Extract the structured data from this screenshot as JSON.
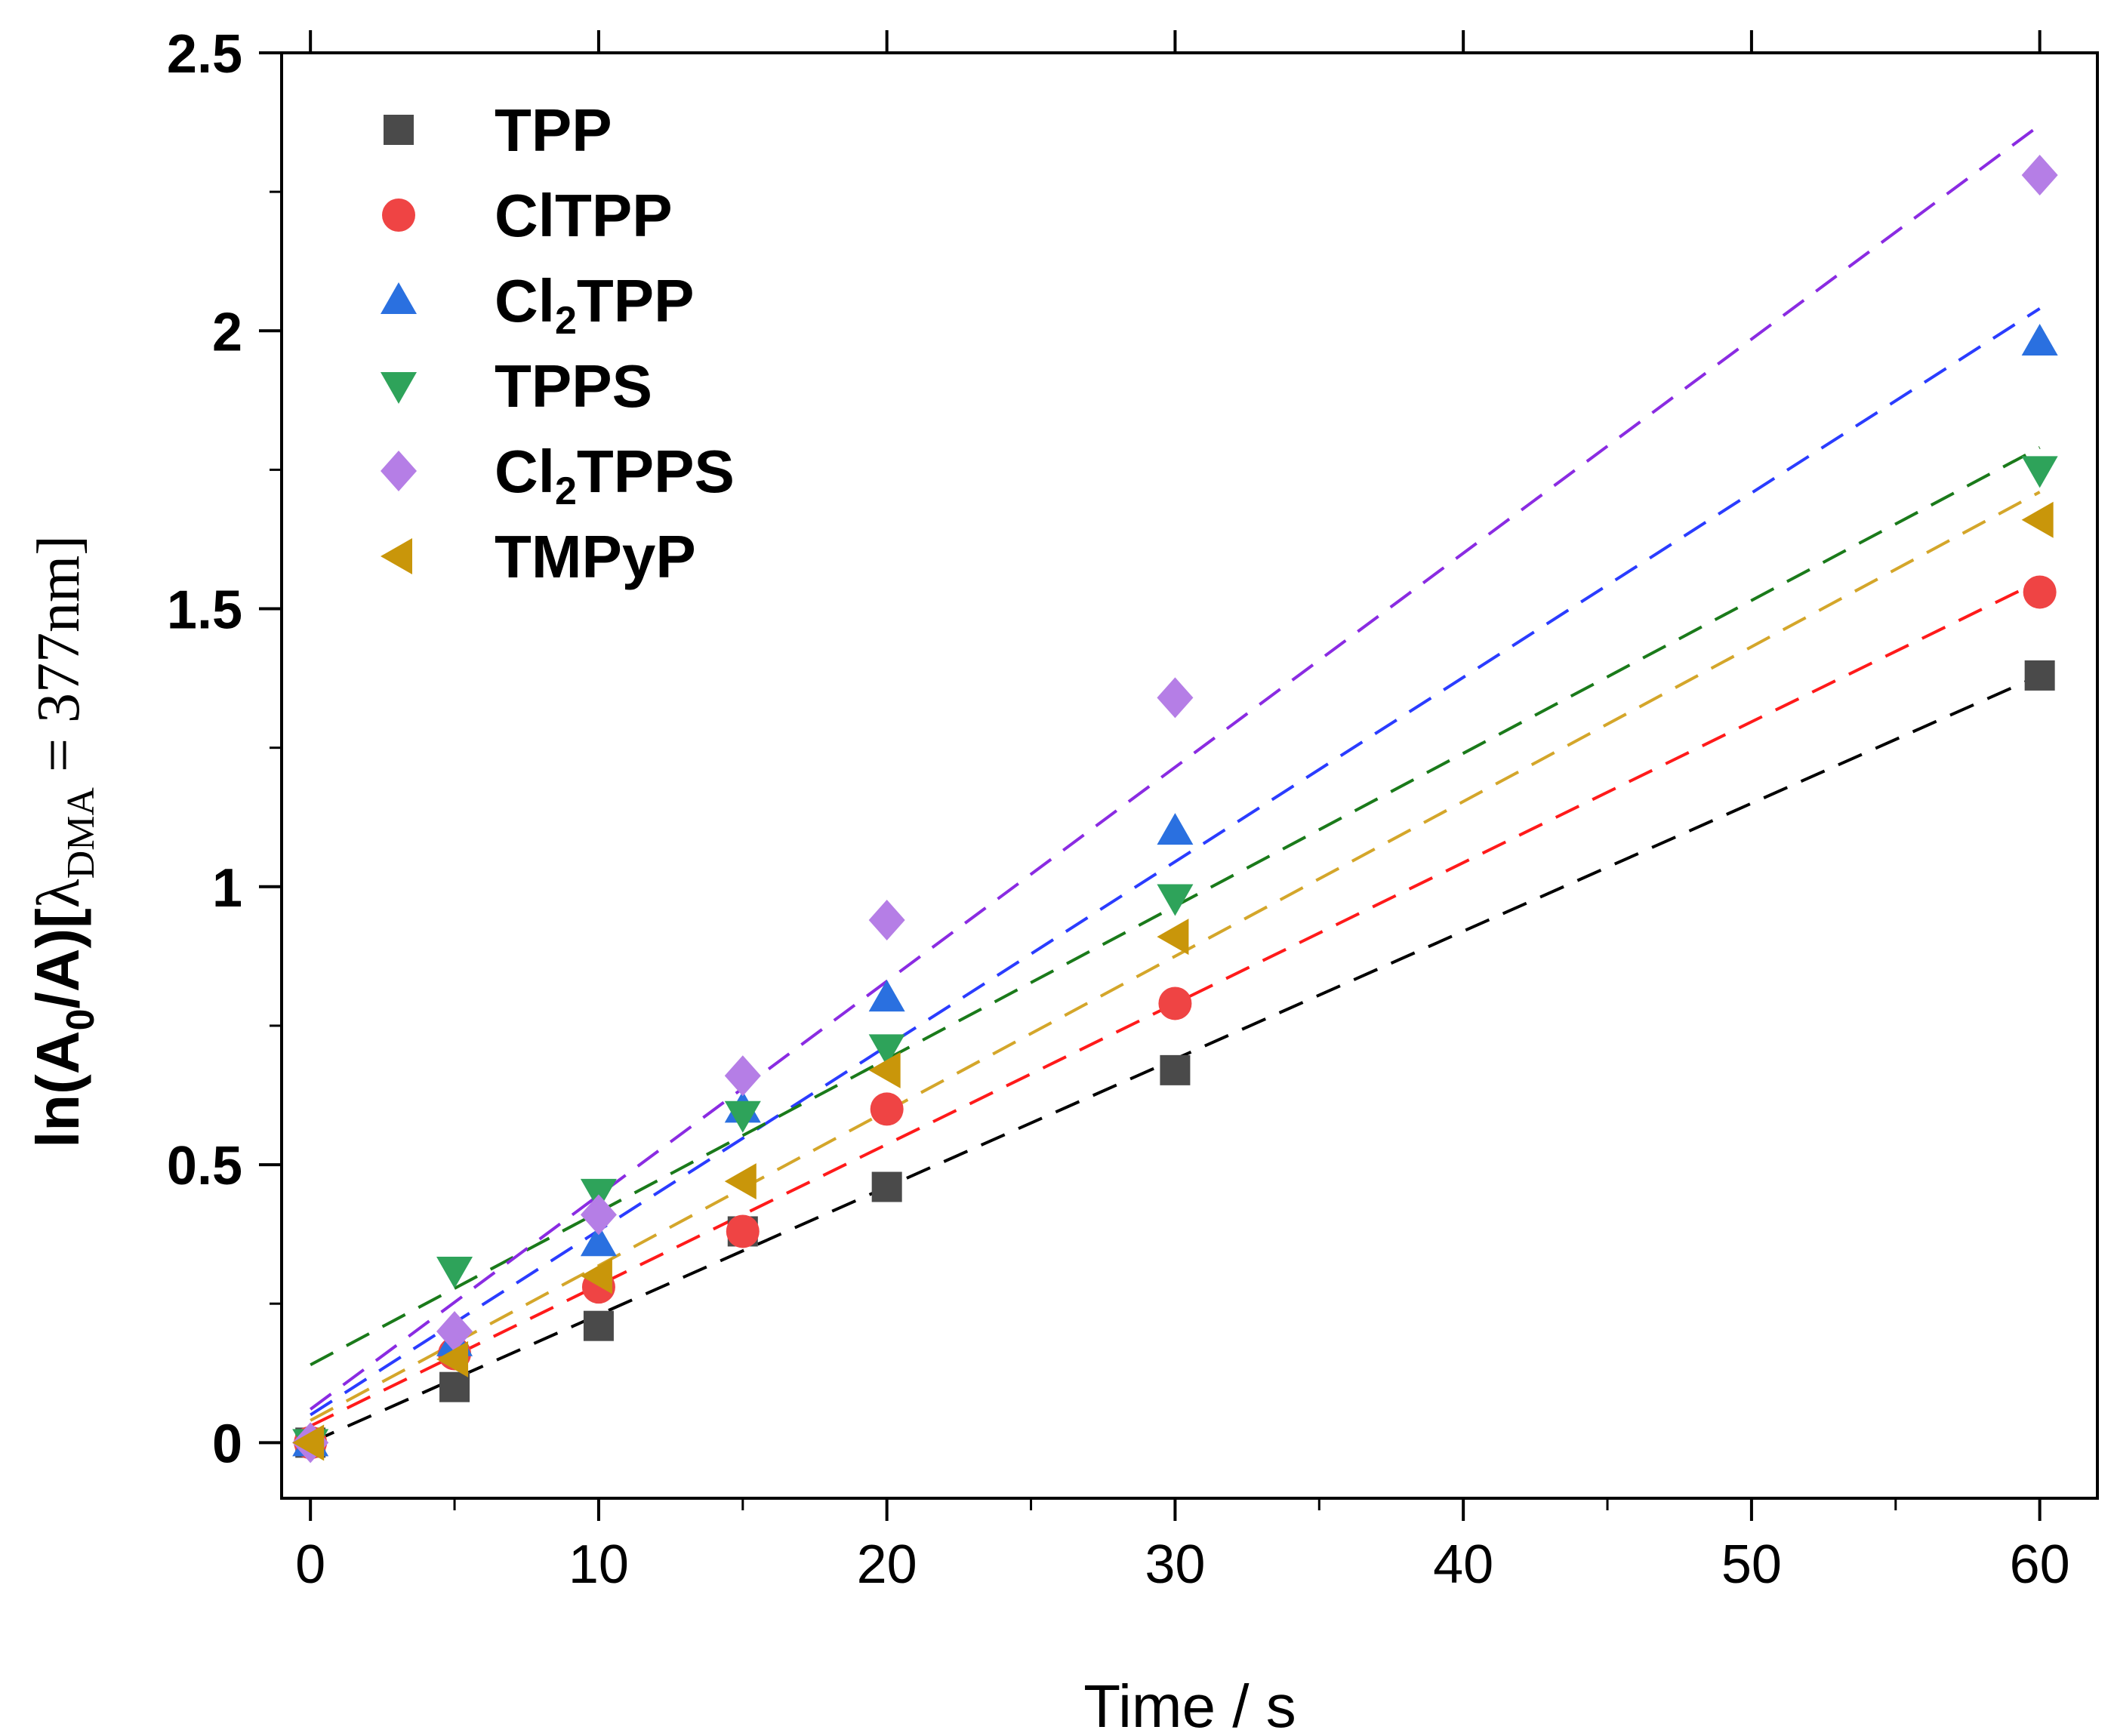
{
  "chart_data": {
    "type": "scatter",
    "xlabel": "Time / s",
    "ylabel": {
      "main": "ln(A",
      "sub0": "0",
      "mid": "/A)[",
      "lambda": "λ",
      "lambda_sub": "DMA",
      "rest": " = 377nm]"
    },
    "xlim": [
      -1,
      62
    ],
    "ylim": [
      -0.1,
      2.5
    ],
    "xticks": [
      0,
      10,
      20,
      30,
      40,
      50,
      60
    ],
    "xtick_labels": [
      "0",
      "10",
      "20",
      "30",
      "40",
      "50",
      "60"
    ],
    "yticks": [
      0,
      0.5,
      1,
      1.5,
      2,
      2.5
    ],
    "ytick_labels": [
      "0",
      "0.5",
      "1",
      "1.5",
      "2",
      "2.5"
    ],
    "x": [
      0,
      5,
      10,
      15,
      20,
      30,
      60
    ],
    "legend_position": "top-left",
    "series": [
      {
        "name": "TPP",
        "name_base": "TPP",
        "name_sub": "",
        "name_tail": "",
        "marker": "square",
        "color": "#4a4a4a",
        "fit_color": "#000000",
        "values": [
          0.0,
          0.1,
          0.21,
          0.38,
          0.46,
          0.67,
          1.38
        ],
        "fit": [
          0.0,
          1.38
        ]
      },
      {
        "name": "ClTPP",
        "name_base": "ClTPP",
        "name_sub": "",
        "name_tail": "",
        "marker": "circle",
        "color": "#ef4444",
        "fit_color": "#ff1a1a",
        "values": [
          0.0,
          0.16,
          0.28,
          0.38,
          0.6,
          0.79,
          1.53
        ],
        "fit": [
          0.03,
          1.55
        ]
      },
      {
        "name": "Cl2TPP",
        "name_base": "Cl",
        "name_sub": "2",
        "name_tail": "TPP",
        "marker": "triangle-up",
        "color": "#2a70e0",
        "fit_color": "#2a3cff",
        "values": [
          0.0,
          0.18,
          0.36,
          0.6,
          0.8,
          1.1,
          1.98
        ],
        "fit": [
          0.05,
          2.04
        ]
      },
      {
        "name": "TPPS",
        "name_base": "TPPS",
        "name_sub": "",
        "name_tail": "",
        "marker": "triangle-down",
        "color": "#2ea35a",
        "fit_color": "#1a7a1a",
        "values": [
          0.0,
          0.31,
          0.45,
          0.59,
          0.71,
          0.98,
          1.75
        ],
        "fit": [
          0.14,
          1.79
        ]
      },
      {
        "name": "Cl2TPPS",
        "name_base": "Cl",
        "name_sub": "2",
        "name_tail": "TPPS",
        "marker": "diamond",
        "color": "#b57ee6",
        "fit_color": "#8a2be2",
        "values": [
          0.0,
          0.2,
          0.41,
          0.66,
          0.94,
          1.34,
          2.28
        ],
        "fit": [
          0.06,
          2.37
        ]
      },
      {
        "name": "TMPyP",
        "name_base": "TMPyP",
        "name_sub": "",
        "name_tail": "",
        "marker": "triangle-left",
        "color": "#c9960a",
        "fit_color": "#d4a62a",
        "values": [
          0.0,
          0.15,
          0.3,
          0.47,
          0.67,
          0.91,
          1.66
        ],
        "fit": [
          0.04,
          1.71
        ]
      }
    ]
  }
}
